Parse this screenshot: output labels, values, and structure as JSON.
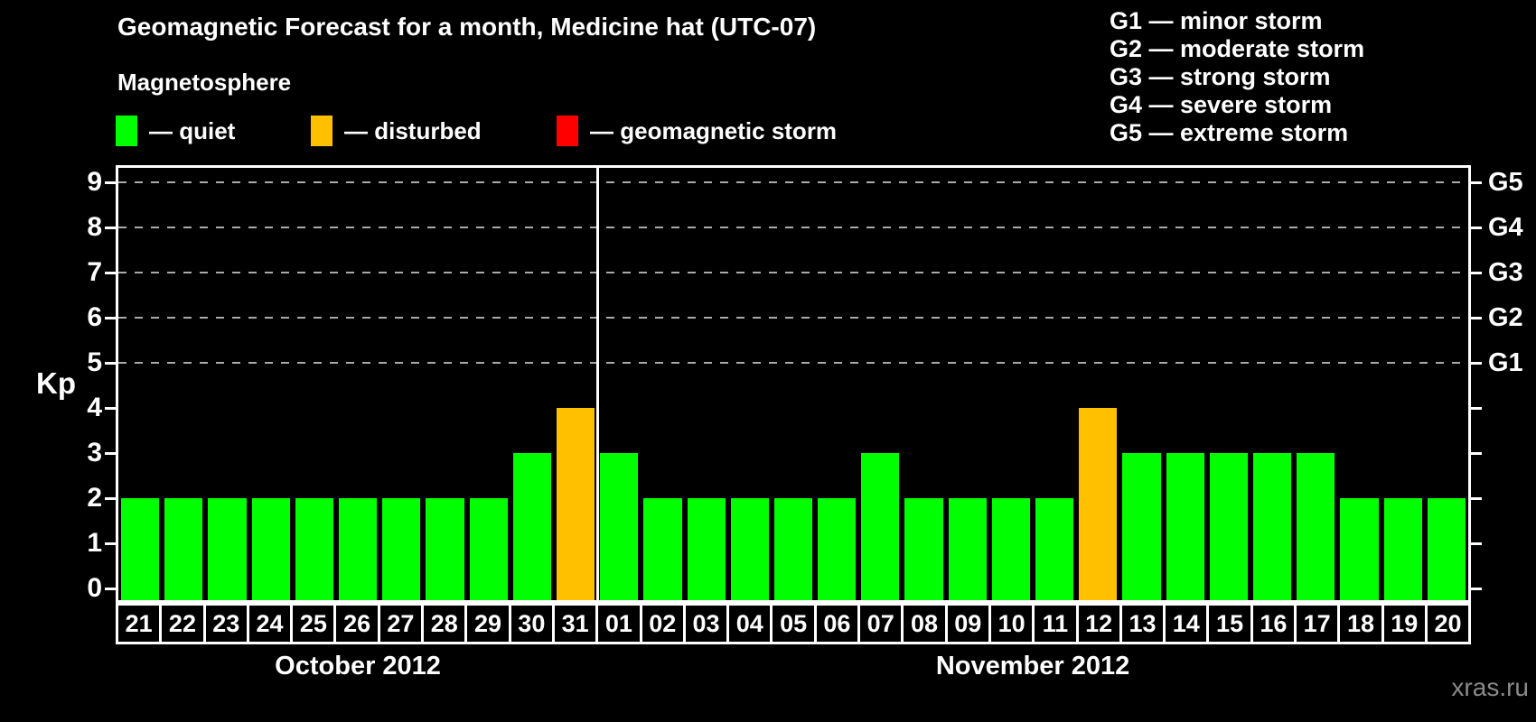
{
  "title": "Geomagnetic Forecast for a month, Medicine hat (UTC-07)",
  "legend": {
    "heading": "Magnetosphere",
    "items": [
      {
        "label": "— quiet",
        "color": "#00ff00"
      },
      {
        "label": "— disturbed",
        "color": "#ffc000"
      },
      {
        "label": "— geomagnetic storm",
        "color": "#ff0000"
      }
    ]
  },
  "g_legend": [
    "G1 — minor storm",
    "G2 — moderate storm",
    "G3 — strong storm",
    "G4 — severe storm",
    "G5 — extreme storm"
  ],
  "watermark": "xras.ru",
  "chart_data": {
    "type": "bar",
    "ylabel": "Kp",
    "ylim": [
      0,
      9
    ],
    "yticks": [
      0,
      1,
      2,
      3,
      4,
      5,
      6,
      7,
      8,
      9
    ],
    "grid_kp": [
      5,
      6,
      7,
      8,
      9
    ],
    "right_axis": [
      {
        "kp": 5,
        "label": "G1"
      },
      {
        "kp": 6,
        "label": "G2"
      },
      {
        "kp": 7,
        "label": "G3"
      },
      {
        "kp": 8,
        "label": "G4"
      },
      {
        "kp": 9,
        "label": "G5"
      }
    ],
    "categories": [
      "21",
      "22",
      "23",
      "24",
      "25",
      "26",
      "27",
      "28",
      "29",
      "30",
      "31",
      "01",
      "02",
      "03",
      "04",
      "05",
      "06",
      "07",
      "08",
      "09",
      "10",
      "11",
      "12",
      "13",
      "14",
      "15",
      "16",
      "17",
      "18",
      "19",
      "20"
    ],
    "values": [
      2,
      2,
      2,
      2,
      2,
      2,
      2,
      2,
      2,
      3,
      4,
      3,
      2,
      2,
      2,
      2,
      2,
      3,
      2,
      2,
      2,
      2,
      4,
      3,
      3,
      3,
      3,
      3,
      2,
      2,
      2
    ],
    "statuses": [
      "quiet",
      "quiet",
      "quiet",
      "quiet",
      "quiet",
      "quiet",
      "quiet",
      "quiet",
      "quiet",
      "quiet",
      "disturbed",
      "quiet",
      "quiet",
      "quiet",
      "quiet",
      "quiet",
      "quiet",
      "quiet",
      "quiet",
      "quiet",
      "quiet",
      "quiet",
      "disturbed",
      "quiet",
      "quiet",
      "quiet",
      "quiet",
      "quiet",
      "quiet",
      "quiet",
      "quiet"
    ],
    "status_colors": {
      "quiet": "#00ff00",
      "disturbed": "#ffc000",
      "storm": "#ff0000"
    },
    "months": [
      {
        "label": "October 2012",
        "days": 11
      },
      {
        "label": "November 2012",
        "days": 20
      }
    ]
  }
}
